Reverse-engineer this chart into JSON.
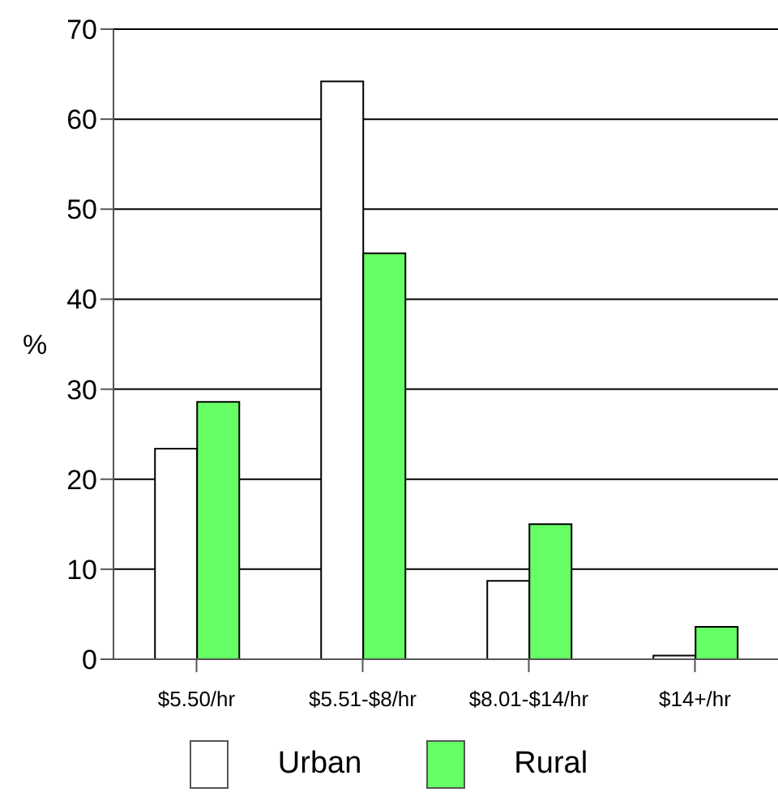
{
  "chart_data": {
    "type": "bar",
    "ylabel": "%",
    "categories": [
      "$5.50/hr",
      "$5.51-$8/hr",
      "$8.01-$14/hr",
      "$14+/hr"
    ],
    "series": [
      {
        "name": "Urban",
        "color": "#ffffff",
        "values": [
          23.4,
          64.2,
          8.7,
          0.4
        ]
      },
      {
        "name": "Rural",
        "color": "#66ff66",
        "values": [
          28.6,
          45.1,
          15.0,
          3.6
        ]
      }
    ],
    "ylim": [
      0,
      70
    ],
    "yticks": [
      0,
      10,
      20,
      30,
      40,
      50,
      60,
      70
    ],
    "grid": "y",
    "legend": "bottom"
  }
}
